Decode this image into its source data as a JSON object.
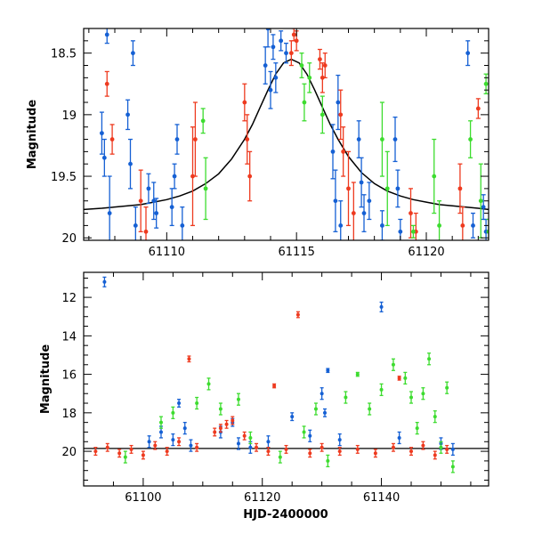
{
  "chart_data": [
    {
      "type": "scatter",
      "panel": "top",
      "title": "",
      "xlabel": "",
      "ylabel": "Magnitude",
      "xlim": [
        61106.8,
        61122.4
      ],
      "ylim": [
        18.3,
        20.02
      ],
      "y_inverted": true,
      "xticks": [
        61110,
        61115,
        61120
      ],
      "xtick_labels": [
        "61110",
        "61115",
        "61120"
      ],
      "yticks": [
        18.5,
        19,
        19.5,
        20
      ],
      "ytick_labels": [
        "18.5",
        "19",
        "19.5",
        "20"
      ],
      "colors": {
        "blue": "#1560d4",
        "red": "#ee3a1f",
        "green": "#3ddc2f",
        "model": "#000000"
      },
      "model_curve": {
        "name": "microlensing model",
        "peak_x": 61114.8,
        "peak_mag": 18.55,
        "base_mag": 19.8,
        "width": 1.9,
        "x": [
          61106.8,
          61107.5,
          61108.0,
          61108.5,
          61109.0,
          61109.5,
          61110.0,
          61110.5,
          61111.0,
          61111.5,
          61112.0,
          61112.5,
          61113.0,
          61113.3,
          61113.6,
          61113.9,
          61114.2,
          61114.5,
          61114.8,
          61115.1,
          61115.4,
          61115.7,
          61116.0,
          61116.3,
          61116.6,
          61117.0,
          61117.5,
          61118.0,
          61118.5,
          61119.0,
          61119.5,
          61120.0,
          61120.5,
          61121.0,
          61121.5,
          61122.0,
          61122.4
        ],
        "y": [
          19.77,
          19.76,
          19.75,
          19.74,
          19.73,
          19.71,
          19.69,
          19.66,
          19.62,
          19.56,
          19.48,
          19.36,
          19.2,
          19.08,
          18.94,
          18.8,
          18.67,
          18.58,
          18.55,
          18.58,
          18.67,
          18.8,
          18.94,
          19.08,
          19.2,
          19.34,
          19.47,
          19.56,
          19.62,
          19.66,
          19.69,
          19.71,
          19.73,
          19.74,
          19.75,
          19.76,
          19.77
        ]
      },
      "series": [
        {
          "name": "blue",
          "points": [
            [
              61107.5,
              19.15,
              0.17
            ],
            [
              61107.6,
              19.35,
              0.15
            ],
            [
              61107.7,
              18.35,
              0.07
            ],
            [
              61107.8,
              19.8,
              0.3
            ],
            [
              61108.5,
              19.0,
              0.12
            ],
            [
              61108.6,
              19.4,
              0.2
            ],
            [
              61108.7,
              18.5,
              0.1
            ],
            [
              61108.8,
              19.9,
              0.15
            ],
            [
              61109.3,
              19.6,
              0.12
            ],
            [
              61109.5,
              19.7,
              0.15
            ],
            [
              61109.6,
              19.8,
              0.12
            ],
            [
              61110.2,
              19.75,
              0.15
            ],
            [
              61110.3,
              19.5,
              0.1
            ],
            [
              61110.4,
              19.2,
              0.12
            ],
            [
              61110.6,
              19.9,
              0.15
            ],
            [
              61113.8,
              18.6,
              0.15
            ],
            [
              61113.9,
              18.3,
              0.15
            ],
            [
              61114.0,
              18.8,
              0.15
            ],
            [
              61114.1,
              18.45,
              0.1
            ],
            [
              61114.2,
              18.7,
              0.12
            ],
            [
              61114.4,
              18.4,
              0.08
            ],
            [
              61114.6,
              18.5,
              0.08
            ],
            [
              61116.4,
              19.3,
              0.22
            ],
            [
              61116.5,
              19.7,
              0.25
            ],
            [
              61116.6,
              18.9,
              0.22
            ],
            [
              61116.7,
              19.9,
              0.2
            ],
            [
              61117.4,
              19.2,
              0.15
            ],
            [
              61117.5,
              19.55,
              0.2
            ],
            [
              61117.6,
              19.8,
              0.15
            ],
            [
              61117.8,
              19.7,
              0.15
            ],
            [
              61118.3,
              19.9,
              0.12
            ],
            [
              61118.8,
              19.2,
              0.18
            ],
            [
              61118.9,
              19.6,
              0.15
            ],
            [
              61119.0,
              19.95,
              0.1
            ],
            [
              61121.6,
              18.5,
              0.1
            ],
            [
              61121.8,
              19.9,
              0.1
            ],
            [
              61122.2,
              19.75,
              0.1
            ],
            [
              61122.3,
              19.95,
              0.1
            ]
          ]
        },
        {
          "name": "red",
          "points": [
            [
              61107.7,
              18.75,
              0.1
            ],
            [
              61107.9,
              19.2,
              0.12
            ],
            [
              61109.0,
              19.7,
              0.25
            ],
            [
              61109.2,
              19.95,
              0.2
            ],
            [
              61111.0,
              19.5,
              0.4
            ],
            [
              61111.1,
              19.2,
              0.3
            ],
            [
              61113.0,
              18.9,
              0.15
            ],
            [
              61113.1,
              19.2,
              0.2
            ],
            [
              61113.2,
              19.5,
              0.2
            ],
            [
              61114.8,
              18.5,
              0.1
            ],
            [
              61114.9,
              18.35,
              0.05
            ],
            [
              61115.0,
              18.4,
              0.08
            ],
            [
              61115.9,
              18.55,
              0.08
            ],
            [
              61116.0,
              18.7,
              0.12
            ],
            [
              61116.1,
              18.6,
              0.1
            ],
            [
              61116.7,
              19.0,
              0.2
            ],
            [
              61116.8,
              19.3,
              0.2
            ],
            [
              61117.0,
              19.6,
              0.3
            ],
            [
              61117.2,
              19.8,
              0.25
            ],
            [
              61119.4,
              19.8,
              0.2
            ],
            [
              61119.6,
              19.95,
              0.15
            ],
            [
              61121.3,
              19.6,
              0.2
            ],
            [
              61121.4,
              19.9,
              0.15
            ],
            [
              61122.0,
              18.95,
              0.08
            ]
          ]
        },
        {
          "name": "green",
          "points": [
            [
              61111.4,
              19.05,
              0.1
            ],
            [
              61111.5,
              19.6,
              0.25
            ],
            [
              61115.2,
              18.6,
              0.1
            ],
            [
              61115.3,
              18.9,
              0.15
            ],
            [
              61115.5,
              18.7,
              0.12
            ],
            [
              61116.0,
              19.0,
              0.15
            ],
            [
              61118.3,
              19.2,
              0.3
            ],
            [
              61118.5,
              19.6,
              0.3
            ],
            [
              61119.5,
              19.95,
              0.05
            ],
            [
              61120.3,
              19.5,
              0.3
            ],
            [
              61120.5,
              19.9,
              0.2
            ],
            [
              61121.7,
              19.2,
              0.15
            ],
            [
              61122.1,
              19.7,
              0.3
            ],
            [
              61122.3,
              18.75,
              0.08
            ],
            [
              61122.4,
              19.95,
              0.1
            ]
          ]
        }
      ]
    },
    {
      "type": "scatter",
      "panel": "bottom",
      "title": "",
      "xlabel": "HJD-2400000",
      "ylabel": "Magnitude",
      "xlim": [
        61090,
        61158
      ],
      "ylim": [
        10.7,
        21.8
      ],
      "y_inverted": true,
      "xticks": [
        61100,
        61120,
        61140
      ],
      "xtick_labels": [
        "61100",
        "61120",
        "61140"
      ],
      "yticks": [
        12,
        14,
        16,
        18,
        20
      ],
      "ytick_labels": [
        "12",
        "14",
        "16",
        "18",
        "20"
      ],
      "colors": {
        "blue": "#1560d4",
        "red": "#ee3a1f",
        "green": "#3ddc2f",
        "baseline": "#000000"
      },
      "baseline_mag": 19.85,
      "series": [
        {
          "name": "blue",
          "points": [
            [
              61093.5,
              11.2,
              0.25
            ],
            [
              61101,
              19.5,
              0.3
            ],
            [
              61103,
              19.0,
              0.3
            ],
            [
              61105,
              19.4,
              0.3
            ],
            [
              61106,
              17.5,
              0.2
            ],
            [
              61107,
              18.8,
              0.3
            ],
            [
              61108,
              19.7,
              0.3
            ],
            [
              61113,
              19.0,
              0.3
            ],
            [
              61115,
              18.5,
              0.2
            ],
            [
              61116,
              19.6,
              0.3
            ],
            [
              61118,
              19.8,
              0.3
            ],
            [
              61121,
              19.5,
              0.3
            ],
            [
              61125,
              18.2,
              0.2
            ],
            [
              61128,
              19.2,
              0.3
            ],
            [
              61130,
              17.0,
              0.3
            ],
            [
              61130.5,
              18.0,
              0.2
            ],
            [
              61131,
              15.8,
              0.1
            ],
            [
              61133,
              19.4,
              0.3
            ],
            [
              61140,
              12.5,
              0.25
            ],
            [
              61143,
              19.3,
              0.3
            ],
            [
              61150,
              19.6,
              0.3
            ],
            [
              61152,
              19.9,
              0.3
            ]
          ]
        },
        {
          "name": "red",
          "points": [
            [
              61092,
              20.0,
              0.2
            ],
            [
              61094,
              19.8,
              0.2
            ],
            [
              61096,
              20.1,
              0.2
            ],
            [
              61098,
              19.9,
              0.2
            ],
            [
              61100,
              20.2,
              0.2
            ],
            [
              61102,
              19.7,
              0.2
            ],
            [
              61104,
              20.0,
              0.2
            ],
            [
              61106,
              19.5,
              0.2
            ],
            [
              61107.7,
              15.2,
              0.15
            ],
            [
              61109,
              19.8,
              0.2
            ],
            [
              61112,
              19.0,
              0.2
            ],
            [
              61113,
              18.8,
              0.2
            ],
            [
              61114,
              18.6,
              0.2
            ],
            [
              61115,
              18.4,
              0.2
            ],
            [
              61117,
              19.2,
              0.2
            ],
            [
              61119,
              19.8,
              0.2
            ],
            [
              61121,
              20.0,
              0.2
            ],
            [
              61122,
              16.6,
              0.1
            ],
            [
              61124,
              19.9,
              0.2
            ],
            [
              61126,
              12.9,
              0.15
            ],
            [
              61128,
              20.1,
              0.2
            ],
            [
              61130,
              19.8,
              0.2
            ],
            [
              61133,
              20.0,
              0.2
            ],
            [
              61136,
              19.9,
              0.2
            ],
            [
              61139,
              20.1,
              0.2
            ],
            [
              61142,
              19.8,
              0.2
            ],
            [
              61143,
              16.2,
              0.1
            ],
            [
              61145,
              20.0,
              0.2
            ],
            [
              61147,
              19.7,
              0.2
            ],
            [
              61149,
              20.2,
              0.2
            ],
            [
              61151,
              19.9,
              0.2
            ]
          ]
        },
        {
          "name": "green",
          "points": [
            [
              61097,
              20.3,
              0.3
            ],
            [
              61103,
              18.5,
              0.3
            ],
            [
              61105,
              18.0,
              0.3
            ],
            [
              61109,
              17.5,
              0.3
            ],
            [
              61111,
              16.5,
              0.3
            ],
            [
              61113,
              17.8,
              0.3
            ],
            [
              61116,
              17.3,
              0.3
            ],
            [
              61118,
              19.3,
              0.3
            ],
            [
              61123,
              20.3,
              0.3
            ],
            [
              61127,
              19.0,
              0.3
            ],
            [
              61129,
              17.8,
              0.3
            ],
            [
              61131,
              20.5,
              0.3
            ],
            [
              61134,
              17.2,
              0.3
            ],
            [
              61136,
              16.0,
              0.1
            ],
            [
              61138,
              17.8,
              0.3
            ],
            [
              61140,
              16.8,
              0.3
            ],
            [
              61142,
              15.5,
              0.3
            ],
            [
              61144,
              16.2,
              0.3
            ],
            [
              61145,
              17.2,
              0.3
            ],
            [
              61146,
              18.8,
              0.3
            ],
            [
              61147,
              17.0,
              0.3
            ],
            [
              61148,
              15.2,
              0.3
            ],
            [
              61149,
              18.2,
              0.3
            ],
            [
              61150,
              19.8,
              0.3
            ],
            [
              61151,
              16.7,
              0.3
            ],
            [
              61152,
              20.8,
              0.3
            ]
          ]
        }
      ]
    }
  ]
}
